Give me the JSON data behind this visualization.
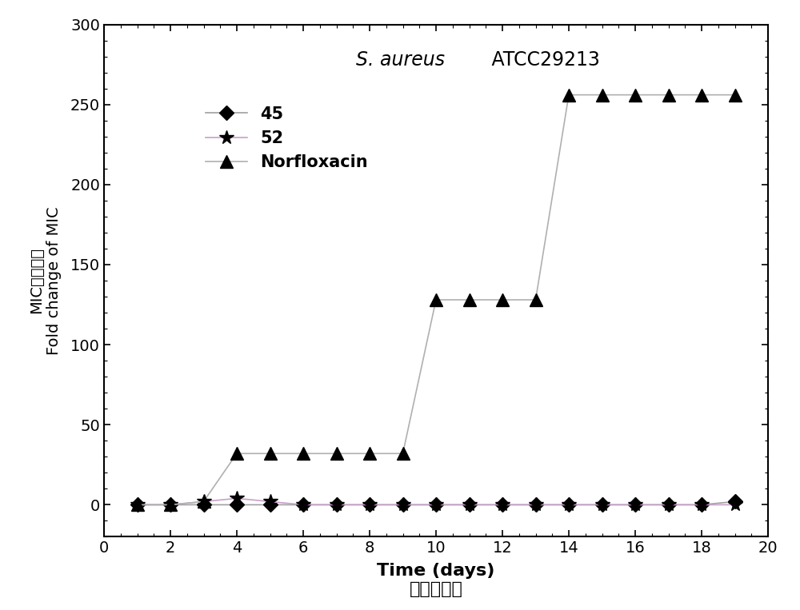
{
  "title_italic": "S. aureus",
  "title_regular": " ATCC29213",
  "xlabel": "Time (days)",
  "xlabel_cn": "时间（天）",
  "ylabel_en": "Fold change of MIC",
  "ylabel_cn": "MIC变化倍数",
  "xlim": [
    0,
    20
  ],
  "ylim": [
    -20,
    300
  ],
  "yticks": [
    0,
    50,
    100,
    150,
    200,
    250,
    300
  ],
  "xticks": [
    0,
    2,
    4,
    6,
    8,
    10,
    12,
    14,
    16,
    18,
    20
  ],
  "series_45_x": [
    1,
    2,
    3,
    4,
    5,
    6,
    7,
    8,
    9,
    10,
    11,
    12,
    13,
    14,
    15,
    16,
    17,
    18,
    19
  ],
  "series_45_y": [
    0,
    0,
    0,
    0,
    0,
    0,
    0,
    0,
    0,
    0,
    0,
    0,
    0,
    0,
    0,
    0,
    0,
    0,
    2
  ],
  "series_52_x": [
    1,
    2,
    3,
    4,
    5,
    6,
    7,
    8,
    9,
    10,
    11,
    12,
    13,
    14,
    15,
    16,
    17,
    18,
    19
  ],
  "series_52_y": [
    0,
    0,
    2,
    4,
    2,
    0,
    0,
    0,
    0,
    0,
    0,
    0,
    0,
    0,
    0,
    0,
    0,
    0,
    0
  ],
  "series_norf_x": [
    1,
    2,
    3,
    4,
    5,
    6,
    7,
    8,
    9,
    10,
    11,
    12,
    13,
    14,
    15,
    16,
    17,
    18,
    19
  ],
  "series_norf_y": [
    0,
    0,
    2,
    32,
    32,
    32,
    32,
    32,
    32,
    128,
    128,
    128,
    128,
    256,
    256,
    256,
    256,
    256,
    256
  ],
  "line_color_45": "#a0a0a0",
  "line_color_52": "#c8a0c8",
  "line_color_norf": "#b0b0b0",
  "marker_color": "#000000",
  "background_color": "#ffffff",
  "figsize": [
    10.0,
    7.63
  ]
}
